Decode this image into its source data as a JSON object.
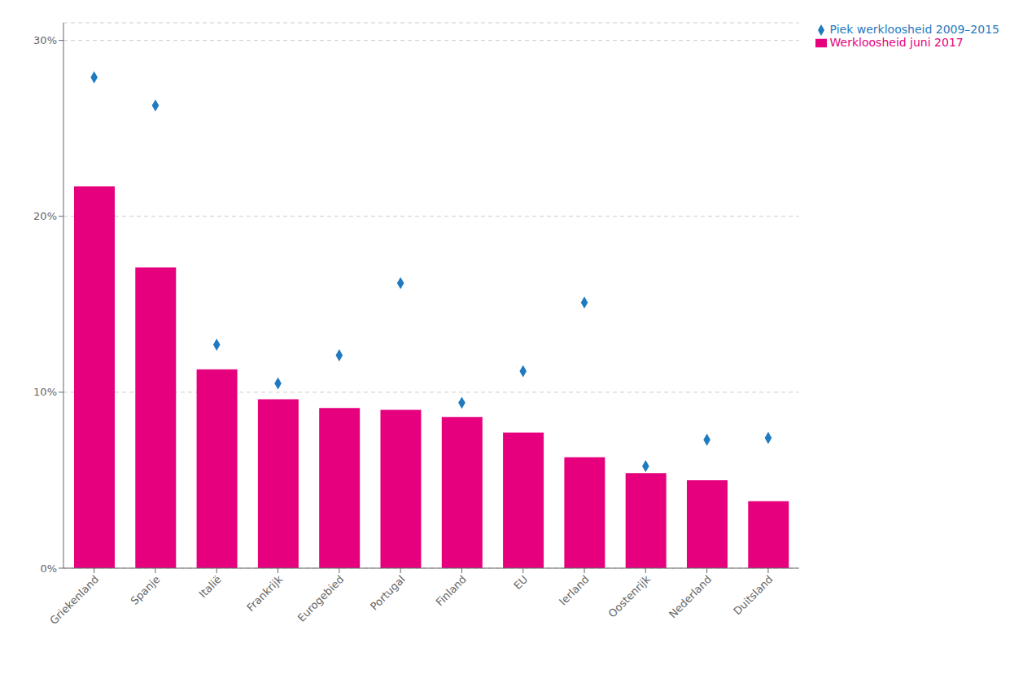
{
  "chart_data": {
    "type": "bar",
    "categories": [
      "Griekenland",
      "Spanje",
      "Italië",
      "Frankrijk",
      "Eurogebied",
      "Portugal",
      "Finland",
      "EU",
      "Ierland",
      "Oostenrijk",
      "Nederland",
      "Duitsland"
    ],
    "series": [
      {
        "name": "Werkloosheid juni 2017",
        "type": "bar",
        "color": "#e6007e",
        "values": [
          21.7,
          17.1,
          11.3,
          9.6,
          9.1,
          9.0,
          8.6,
          7.7,
          6.3,
          5.4,
          5.0,
          3.8
        ]
      },
      {
        "name": "Piek werkloosheid 2009–2015",
        "type": "scatter",
        "marker": "diamond",
        "color": "#1f7abf",
        "values": [
          27.9,
          26.3,
          12.7,
          10.5,
          12.1,
          16.2,
          9.4,
          11.2,
          15.1,
          5.8,
          7.3,
          7.4
        ]
      }
    ],
    "ylim": [
      0,
      31
    ],
    "yticks": [
      {
        "value": 0,
        "label": "0%"
      },
      {
        "value": 10,
        "label": "10%"
      },
      {
        "value": 20,
        "label": "20%"
      },
      {
        "value": 30,
        "label": "30%"
      }
    ],
    "grid": true,
    "legend": "upper right"
  }
}
